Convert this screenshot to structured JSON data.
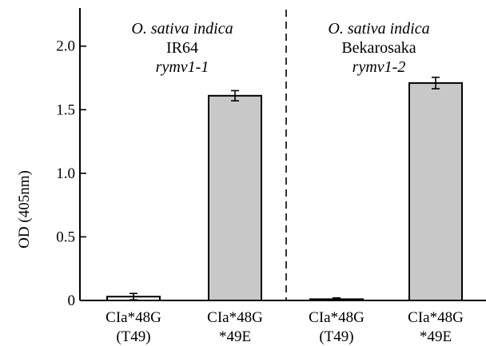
{
  "chart_data": {
    "type": "bar",
    "ylabel": "OD (405nm)",
    "ylim": [
      0,
      2.3
    ],
    "yticks": [
      "0",
      "0.5",
      "1.0",
      "1.5",
      "2.0"
    ],
    "ytick_values": [
      0,
      0.5,
      1.0,
      1.5,
      2.0
    ],
    "grid": false,
    "categories": [
      {
        "line1": "CIa*48G",
        "line2": "(T49)"
      },
      {
        "line1": "CIa*48G",
        "line2": "*49E"
      },
      {
        "line1": "CIa*48G",
        "line2": "(T49)"
      },
      {
        "line1": "CIa*48G",
        "line2": "*49E"
      }
    ],
    "values": [
      0.03,
      1.61,
      0.01,
      1.71
    ],
    "errors": [
      0.025,
      0.04,
      0.01,
      0.045
    ],
    "bar_colors": [
      "#ffffff",
      "#c8c8c8",
      "#ffffff",
      "#c8c8c8"
    ],
    "panels": [
      {
        "species": "O. sativa indica",
        "cultivar": "IR64",
        "allele": "rymv1-1"
      },
      {
        "species": "O. sativa indica",
        "cultivar": "Bekarosaka",
        "allele": "rymv1-2"
      }
    ]
  }
}
